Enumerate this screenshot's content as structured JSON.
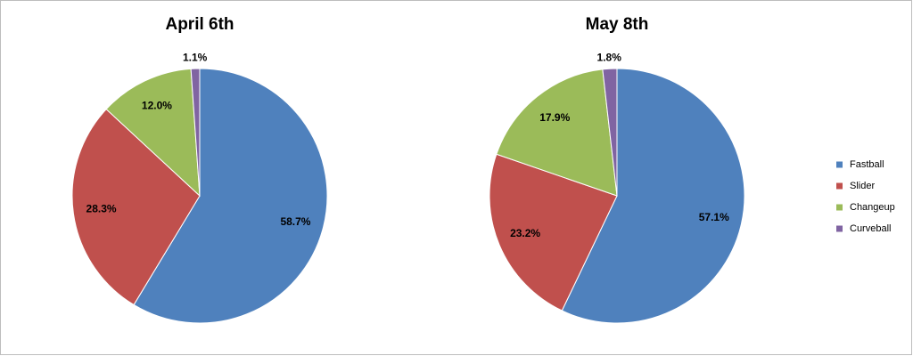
{
  "chart_data": [
    {
      "type": "pie",
      "title": "April 6th",
      "categories": [
        "Fastball",
        "Slider",
        "Changeup",
        "Curveball"
      ],
      "values": [
        58.7,
        28.3,
        12.0,
        1.1
      ],
      "value_labels": [
        "58.7%",
        "28.3%",
        "12.0%",
        "1.1%"
      ],
      "colors": [
        "#4f81bd",
        "#c0504d",
        "#9bbb59",
        "#8064a2"
      ],
      "legend": "right"
    },
    {
      "type": "pie",
      "title": "May 8th",
      "categories": [
        "Fastball",
        "Slider",
        "Changeup",
        "Curveball"
      ],
      "values": [
        57.1,
        23.2,
        17.9,
        1.8
      ],
      "value_labels": [
        "57.1%",
        "23.2%",
        "17.9%",
        "1.8%"
      ],
      "colors": [
        "#4f81bd",
        "#c0504d",
        "#9bbb59",
        "#8064a2"
      ],
      "legend": "right"
    }
  ]
}
